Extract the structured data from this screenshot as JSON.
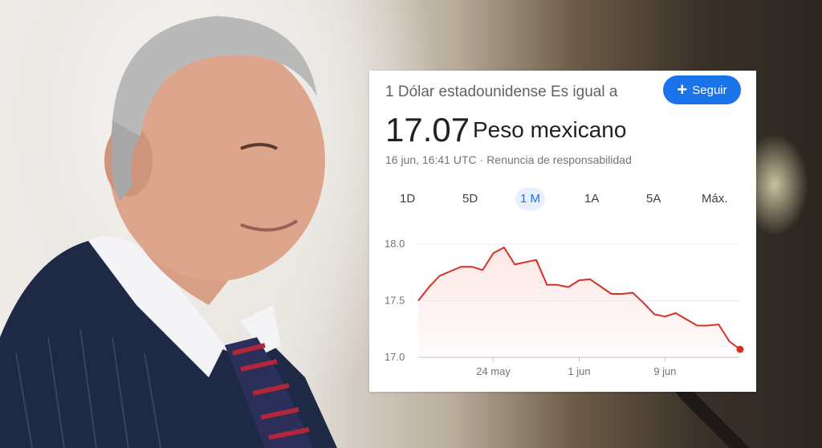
{
  "card": {
    "header": "1 Dólar estadounidense Es igual a",
    "follow_label": "Seguir",
    "rate_value": "17.07",
    "currency_name": "Peso mexicano",
    "timestamp": "16 jun, 16:41 UTC",
    "separator": "·",
    "disclaimer": "Renuncia de responsabilidad",
    "tabs": [
      {
        "label": "1D"
      },
      {
        "label": "5D"
      },
      {
        "label": "1 M",
        "active": true
      },
      {
        "label": "1A"
      },
      {
        "label": "5A"
      },
      {
        "label": "Máx."
      }
    ]
  },
  "colors": {
    "accent": "#1a73e8",
    "series_line": "#d93025",
    "series_fill": "#fce8e6"
  },
  "icons": {
    "follow": "plus-icon"
  },
  "chart_data": {
    "type": "area",
    "x": [
      "2023-05-17",
      "2023-05-18",
      "2023-05-19",
      "2023-05-21",
      "2023-05-22",
      "2023-05-23",
      "2023-05-24",
      "2023-05-25",
      "2023-05-26",
      "2023-05-28",
      "2023-05-29",
      "2023-05-30",
      "2023-05-31",
      "2023-06-01",
      "2023-06-02",
      "2023-06-04",
      "2023-06-05",
      "2023-06-06",
      "2023-06-07",
      "2023-06-08",
      "2023-06-09",
      "2023-06-10",
      "2023-06-12",
      "2023-06-13",
      "2023-06-14",
      "2023-06-15",
      "2023-06-16"
    ],
    "y": [
      17.5,
      17.62,
      17.72,
      17.8,
      17.8,
      17.77,
      17.92,
      17.97,
      17.82,
      17.86,
      17.64,
      17.64,
      17.62,
      17.68,
      17.69,
      17.56,
      17.56,
      17.57,
      17.48,
      17.38,
      17.36,
      17.39,
      17.28,
      17.28,
      17.29,
      17.14,
      17.07
    ],
    "ylim": [
      17.0,
      18.0
    ],
    "yticks": [
      "18.0",
      "17.5",
      "17.0"
    ],
    "xticks": [
      "24 may",
      "1 jun",
      "9 jun"
    ],
    "grid": true,
    "last_point_marker": true
  }
}
